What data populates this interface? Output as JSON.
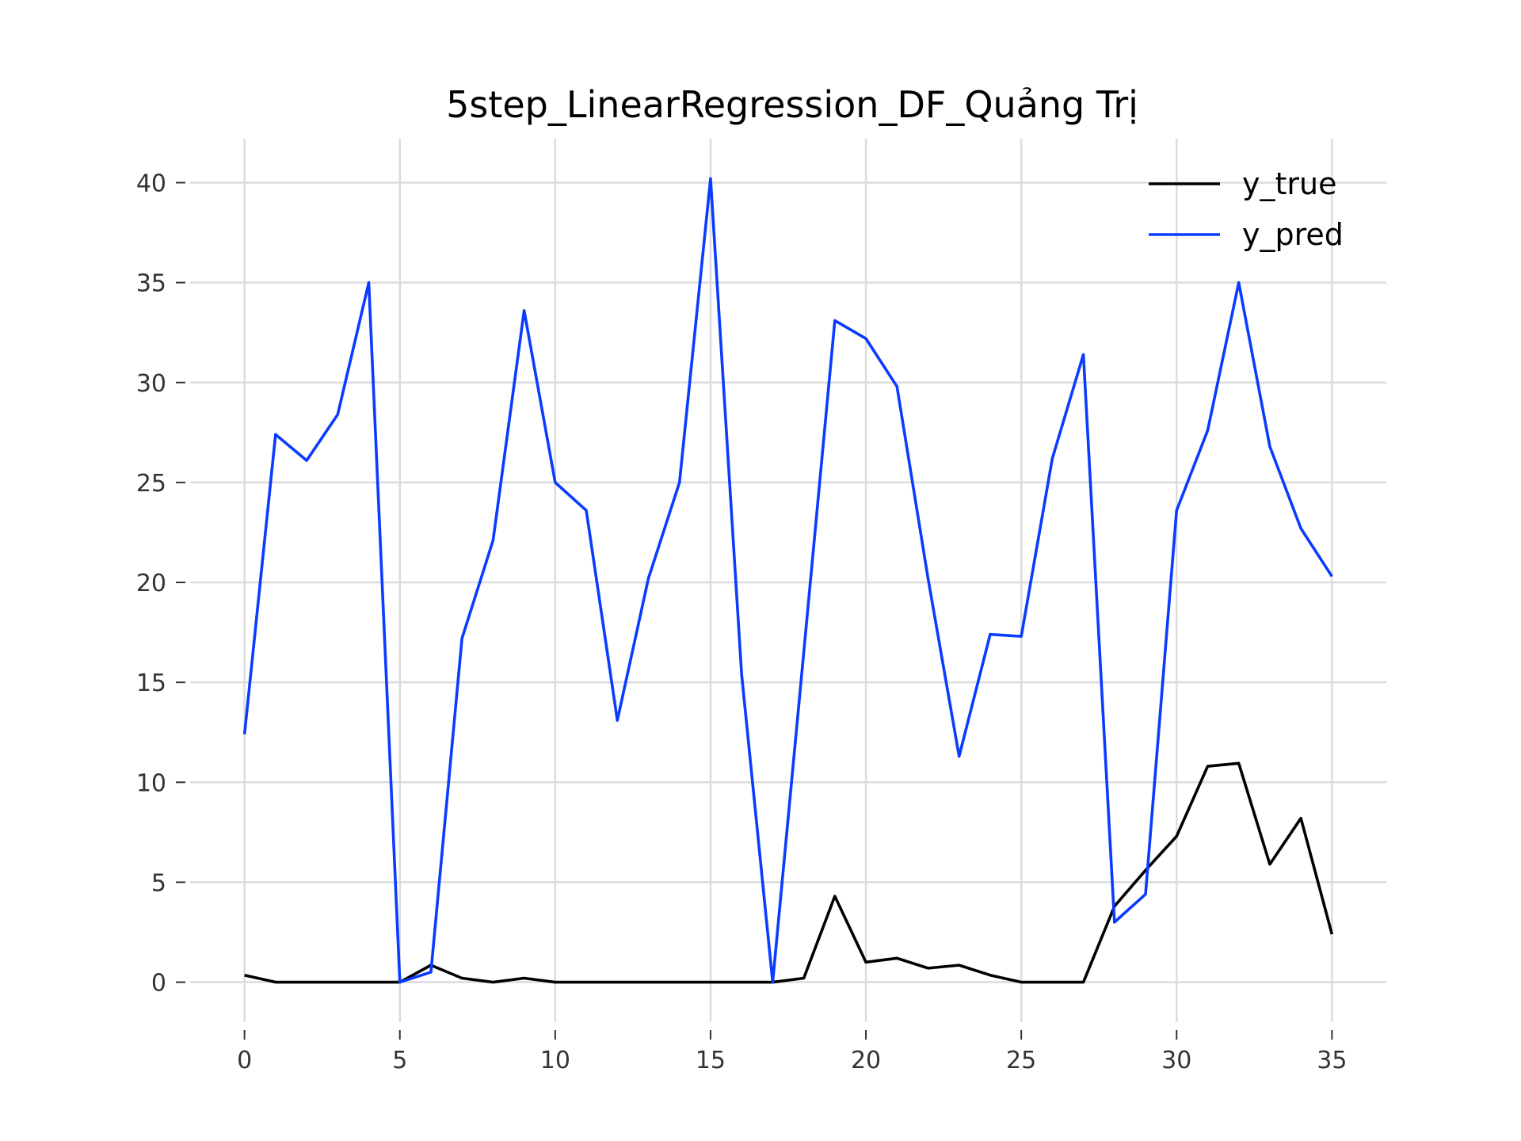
{
  "chart_data": {
    "type": "line",
    "title": "5step_LinearRegression_DF_Quảng Trị",
    "xlabel": "",
    "ylabel": "",
    "xlim": [
      -1.75,
      36.75
    ],
    "ylim": [
      -2.0,
      42.2
    ],
    "x_ticks": [
      0,
      5,
      10,
      15,
      20,
      25,
      30,
      35
    ],
    "y_ticks": [
      0,
      5,
      10,
      15,
      20,
      25,
      30,
      35,
      40
    ],
    "grid": true,
    "legend_position": "top-right",
    "x": [
      0,
      1,
      2,
      3,
      4,
      5,
      6,
      7,
      8,
      9,
      10,
      11,
      12,
      13,
      14,
      15,
      16,
      17,
      18,
      19,
      20,
      21,
      22,
      23,
      24,
      25,
      26,
      27,
      28,
      29,
      30,
      31,
      32,
      33,
      34,
      35
    ],
    "series": [
      {
        "name": "y_true",
        "color": "#000000",
        "values": [
          0.35,
          0.0,
          0.0,
          0.0,
          0.0,
          0.0,
          0.85,
          0.2,
          0.0,
          0.2,
          0.0,
          0.0,
          0.0,
          0.0,
          0.0,
          0.0,
          0.0,
          0.0,
          0.2,
          4.3,
          1.0,
          1.2,
          0.7,
          0.85,
          0.35,
          0.0,
          0.0,
          0.0,
          3.8,
          5.6,
          7.3,
          10.8,
          10.95,
          5.9,
          8.2,
          2.4
        ]
      },
      {
        "name": "y_pred",
        "color": "#0a3cff",
        "values": [
          12.4,
          27.4,
          26.1,
          28.4,
          35.0,
          0.0,
          0.5,
          17.2,
          22.1,
          33.6,
          25.0,
          23.6,
          13.1,
          20.2,
          25.0,
          40.2,
          15.4,
          0.0,
          16.5,
          33.1,
          32.2,
          29.8,
          20.2,
          11.3,
          17.4,
          17.3,
          26.2,
          31.4,
          3.0,
          4.4,
          23.6,
          27.6,
          35.0,
          26.8,
          22.7,
          20.3
        ]
      }
    ]
  }
}
